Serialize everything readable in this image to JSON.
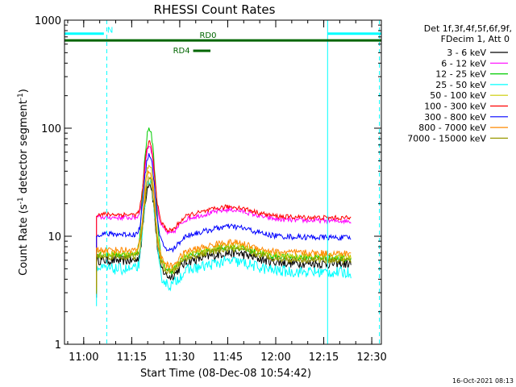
{
  "chart_data": {
    "type": "line",
    "title": "RHESSI Count Rates",
    "xlabel": "Start Time (08-Dec-08 10:54:42)",
    "ylabel_main": "Count Rate (s",
    "ylabel_sup1": "-1",
    "ylabel_mid": " detector segment",
    "ylabel_sup2": "-1",
    "ylabel_end": ")",
    "yscale": "log",
    "ylim": [
      1,
      1000
    ],
    "xlim_minutes": [
      10.9,
      12.55
    ],
    "x_ticks": [
      {
        "t": 11.0,
        "label": "11:00"
      },
      {
        "t": 11.25,
        "label": "11:15"
      },
      {
        "t": 11.5,
        "label": "11:30"
      },
      {
        "t": 11.75,
        "label": "11:45"
      },
      {
        "t": 12.0,
        "label": "12:00"
      },
      {
        "t": 12.25,
        "label": "12:15"
      },
      {
        "t": 12.5,
        "label": "12:30"
      }
    ],
    "y_ticks": [
      {
        "v": 1,
        "label": "1"
      },
      {
        "v": 10,
        "label": "10"
      },
      {
        "v": 100,
        "label": "100"
      },
      {
        "v": 1000,
        "label": "1000"
      }
    ],
    "legend_header": [
      "Det 1f,3f,4f,5f,6f,9f,",
      "FDecim 1, Att 0"
    ],
    "series": [
      {
        "name": "3 - 6 keV",
        "color": "#000000",
        "base": 6.0,
        "peak": 30,
        "noise": 0.1
      },
      {
        "name": "6 - 12 keV",
        "color": "#ff00ff",
        "base": 15.0,
        "peak": 65,
        "noise": 0.05
      },
      {
        "name": "12 - 25 keV",
        "color": "#00cc00",
        "base": 6.8,
        "peak": 97,
        "noise": 0.07
      },
      {
        "name": "25 - 50 keV",
        "color": "#00ffff",
        "base": 5.0,
        "peak": 33,
        "noise": 0.12
      },
      {
        "name": "50 - 100 keV",
        "color": "#cccc00",
        "base": 7.0,
        "peak": 45,
        "noise": 0.07
      },
      {
        "name": "100 - 300 keV",
        "color": "#ff0000",
        "base": 16.0,
        "peak": 70,
        "noise": 0.05
      },
      {
        "name": "300 - 800 keV",
        "color": "#0000ff",
        "base": 10.5,
        "peak": 55,
        "noise": 0.06
      },
      {
        "name": "800 - 7000 keV",
        "color": "#ff8800",
        "base": 7.5,
        "peak": 38,
        "noise": 0.07
      },
      {
        "name": "7000 - 15000 keV",
        "color": "#999900",
        "base": 6.5,
        "peak": 32,
        "noise": 0.07
      }
    ],
    "attenuator_bars": [
      {
        "label": "N",
        "color": "#00ffff",
        "t0": 10.9,
        "t1": 11.105,
        "y": 750
      },
      {
        "label": "",
        "color": "#00ffff",
        "t0": 12.27,
        "t1": 12.55,
        "y": 750
      },
      {
        "label": "RD0",
        "color": "#006600",
        "t0": 10.9,
        "t1": 12.55,
        "y": 650
      },
      {
        "label": "RD4",
        "color": "#006600",
        "t0": 11.57,
        "t1": 11.66,
        "y": 520
      }
    ],
    "vertical_lines": [
      {
        "t": 10.9,
        "style": "solid",
        "color": "#00ffff"
      },
      {
        "t": 11.12,
        "style": "dashed",
        "color": "#00ffff"
      },
      {
        "t": 12.27,
        "style": "solid",
        "color": "#00ffff"
      },
      {
        "t": 12.54,
        "style": "dashed",
        "color": "#00ffff"
      }
    ],
    "footer_date": "16-Oct-2021 08:13"
  }
}
